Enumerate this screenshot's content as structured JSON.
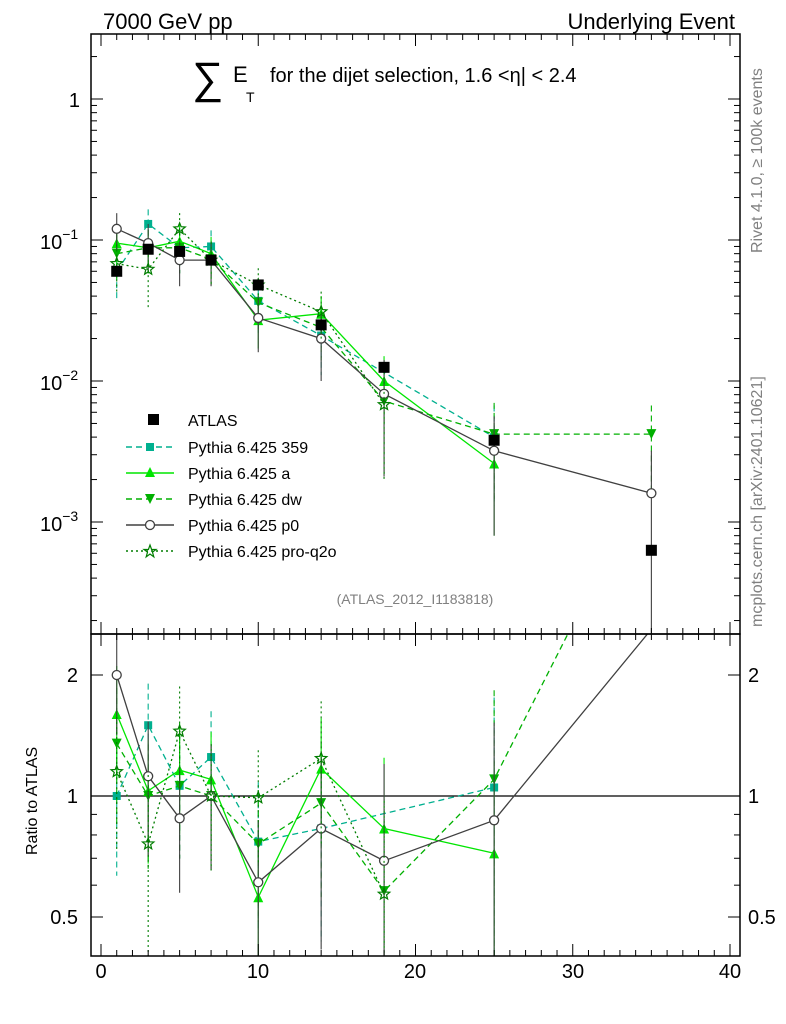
{
  "header": {
    "left": "7000 GeV pp",
    "right": "Underlying Event"
  },
  "title": {
    "sum_symbol": "∑",
    "e": "E",
    "t": "T",
    "text": "for the dijet selection, 1.6 <η| < 2.4"
  },
  "side_labels": {
    "rivet": "Rivet 4.1.0, ≥ 100k events",
    "mcplots": "mcplots.cern.ch [arXiv:2401.10621]"
  },
  "analysis_id": "(ATLAS_2012_I1183818)",
  "ratio_ylabel": "Ratio to ATLAS",
  "tick_labels": {
    "main_y": [
      "1",
      "10",
      "10",
      "10"
    ],
    "main_y_exp": [
      "",
      "−1",
      "−2",
      "−3"
    ],
    "ratio_y": [
      "2",
      "1",
      "0.5"
    ],
    "x": [
      "0",
      "10",
      "20",
      "30",
      "40"
    ]
  },
  "colors": {
    "atlas": "#000000",
    "p359": "#00b08f",
    "pa": "#00e600",
    "pdw": "#00b000",
    "p0": "#404040",
    "pq2o": "#007d00"
  },
  "chart_data": {
    "type": "line",
    "main": {
      "yscale": "log",
      "xlim": [
        -1,
        41
      ],
      "ylim": [
        0.00015,
        2.5
      ]
    },
    "ratio": {
      "yscale": "log",
      "ylim": [
        0.44,
        2.3
      ],
      "reference_line": 1
    },
    "x": [
      1,
      3,
      5,
      7,
      10,
      14,
      18,
      25,
      35
    ],
    "atlas": {
      "name": "ATLAS",
      "values": [
        0.06,
        0.086,
        0.083,
        0.072,
        0.048,
        0.025,
        0.0125,
        0.0038,
        0.00063
      ]
    },
    "series": [
      {
        "key": "p359",
        "name": "Pythia 6.425 359",
        "dash": "dashed",
        "marker": "square",
        "x": [
          1,
          3,
          5,
          7,
          10,
          14,
          25,
          35
        ],
        "values": [
          0.06,
          0.13,
          0.088,
          0.09,
          0.037,
          0.021,
          0.004,
          null
        ],
        "errors": [
          0.022,
          0.035,
          0.03,
          0.027,
          0.015,
          0.01,
          0.0027,
          null
        ],
        "ratio": [
          1.0,
          1.5,
          1.06,
          1.25,
          0.77,
          0.83,
          1.05
        ]
      },
      {
        "key": "pa",
        "name": "Pythia 6.425 a",
        "dash": "solid",
        "marker": "triangle-up",
        "x": [
          1,
          3,
          5,
          7,
          10,
          14,
          18,
          25
        ],
        "values": [
          0.095,
          0.088,
          0.098,
          0.08,
          0.027,
          0.03,
          0.01,
          0.0026
        ],
        "errors": [
          0.03,
          0.03,
          0.03,
          0.025,
          0.01,
          0.01,
          0.005,
          0.0018
        ],
        "ratio": [
          1.6,
          1.03,
          1.16,
          1.1,
          0.56,
          1.17,
          0.83,
          0.72
        ]
      },
      {
        "key": "pdw",
        "name": "Pythia 6.425 dw",
        "dash": "dashed",
        "marker": "triangle-down",
        "x": [
          1,
          3,
          5,
          7,
          10,
          14,
          18,
          25,
          35
        ],
        "values": [
          0.08,
          0.088,
          0.088,
          0.073,
          0.036,
          0.024,
          0.0072,
          0.0042,
          0.0042
        ],
        "errors": [
          0.03,
          0.03,
          0.03,
          0.025,
          0.013,
          0.01,
          0.005,
          0.0028,
          0.0025
        ],
        "ratio": [
          1.35,
          1.0,
          1.06,
          1.0,
          0.76,
          0.96,
          0.58,
          1.1,
          6.5
        ]
      },
      {
        "key": "p0",
        "name": "Pythia 6.425 p0",
        "dash": "solid",
        "marker": "circle-open",
        "x": [
          1,
          3,
          5,
          7,
          10,
          14,
          18,
          25,
          35
        ],
        "values": [
          0.12,
          0.095,
          0.072,
          0.072,
          0.028,
          0.02,
          0.0081,
          0.0032,
          0.0016
        ],
        "errors": [
          0.035,
          0.035,
          0.025,
          0.025,
          0.012,
          0.01,
          0.006,
          0.0024,
          0.0016
        ],
        "ratio": [
          2.0,
          1.12,
          0.88,
          1.0,
          0.61,
          0.83,
          0.69,
          0.87,
          2.6
        ]
      },
      {
        "key": "pq2o",
        "name": "Pythia 6.425 pro-q2o",
        "dash": "dotted",
        "marker": "star",
        "x": [
          1,
          3,
          5,
          7,
          10,
          14,
          18
        ],
        "values": [
          0.068,
          0.062,
          0.12,
          0.072,
          0.048,
          0.031,
          0.0068
        ],
        "errors": [
          0.025,
          0.03,
          0.035,
          0.025,
          0.015,
          0.012,
          0.0048
        ],
        "ratio": [
          1.15,
          0.76,
          1.45,
          1.0,
          0.99,
          1.24,
          0.57
        ]
      }
    ]
  }
}
